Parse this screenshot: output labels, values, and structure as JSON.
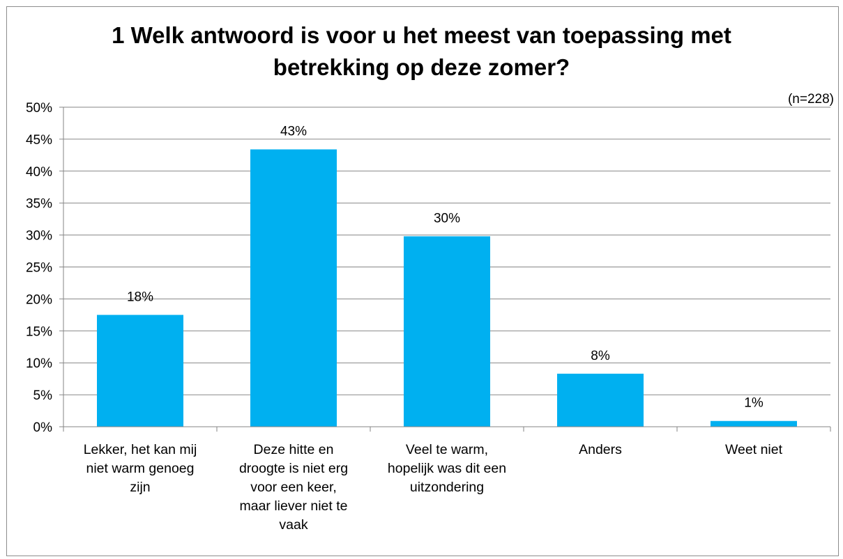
{
  "chart_data": {
    "type": "bar",
    "title_lines": [
      "1 Welk antwoord is voor u het meest van toepassing met",
      "betrekking op deze zomer?"
    ],
    "note": "(n=228)",
    "categories": [
      [
        "Lekker, het kan mij",
        "niet warm genoeg",
        "zijn"
      ],
      [
        "Deze hitte en",
        "droogte is niet erg",
        "voor een keer,",
        "maar liever niet te",
        "vaak"
      ],
      [
        "Veel te warm,",
        "hopelijk was dit een",
        "uitzondering"
      ],
      [
        "Anders"
      ],
      [
        "Weet niet"
      ]
    ],
    "values": [
      17.5,
      43.4,
      29.8,
      8.3,
      0.9
    ],
    "data_labels": [
      "18%",
      "43%",
      "30%",
      "8%",
      "1%"
    ],
    "y_ticks": [
      "0%",
      "5%",
      "10%",
      "15%",
      "20%",
      "25%",
      "30%",
      "35%",
      "40%",
      "45%",
      "50%"
    ],
    "ylim": [
      0,
      50
    ],
    "grid": true,
    "bar_color": "#00B0F0",
    "grid_color": "#868686"
  }
}
